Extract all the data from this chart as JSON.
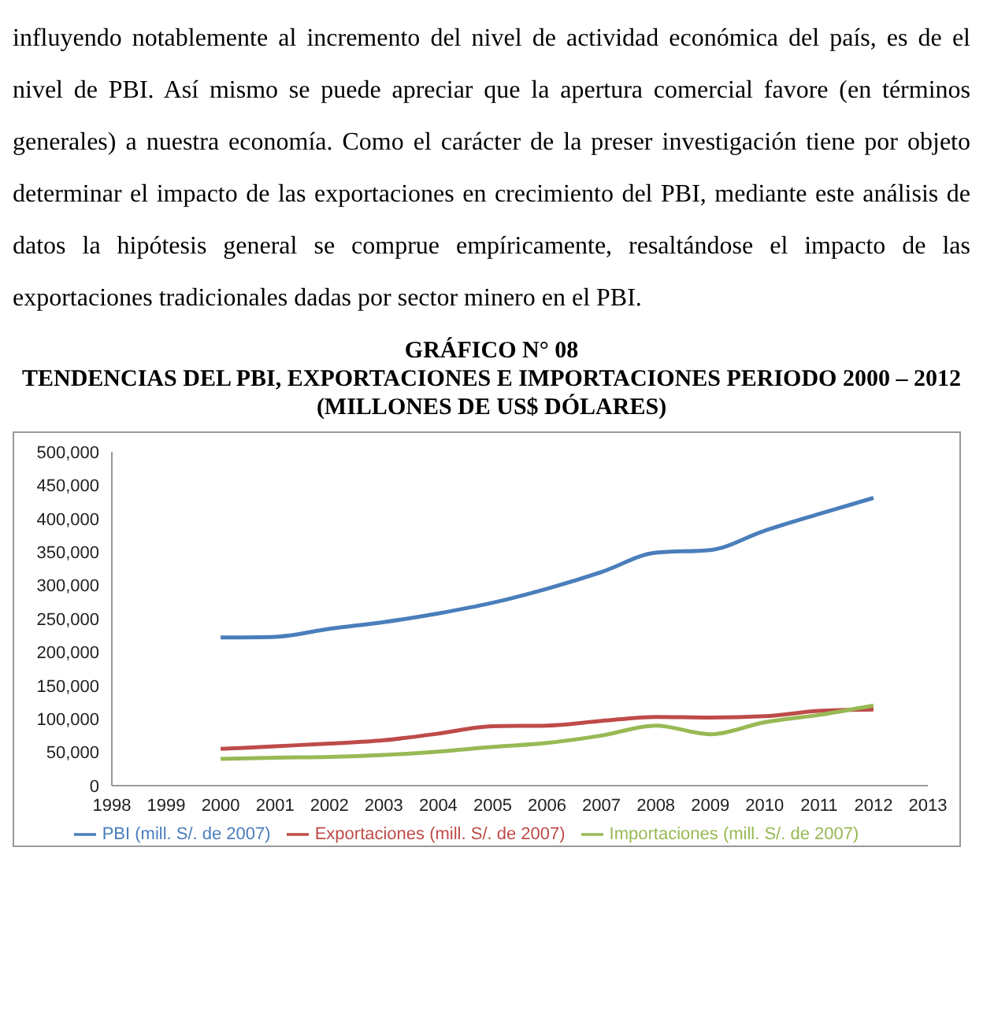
{
  "chart_data": {
    "type": "line",
    "title": "GRÁFICO N° 08",
    "subtitle": "TENDENCIAS DEL PBI, EXPORTACIONES E IMPORTACIONES PERIODO 2000 – 2012  (MILLONES DE US$ DÓLARES)",
    "annotations": [
      "influyendo notablemente al incremento del nivel de actividad económica del país, es de el nivel de PBI. Así mismo se puede apreciar que la apertura comercial favore (en términos generales) a nuestra economía. Como el carácter de la preser investigación tiene por objeto determinar el impacto de las exportaciones en crecimiento del PBI, mediante este análisis de datos la hipótesis general se comprue empíricamente, resaltándose el impacto de las exportaciones tradicionales dadas por sector minero en el PBI."
    ],
    "x": [
      2000,
      2001,
      2002,
      2003,
      2004,
      2005,
      2006,
      2007,
      2008,
      2009,
      2010,
      2011,
      2012
    ],
    "series": [
      {
        "name": "PBI (mill. S/. de 2007)",
        "color": "#4a7ebb",
        "values": [
          222000,
          223000,
          235000,
          245000,
          258000,
          274000,
          295000,
          320000,
          349000,
          353000,
          382000,
          407000,
          431000
        ]
      },
      {
        "name": "Exportaciones (mill. S/. de 2007)",
        "color": "#be4b48",
        "values": [
          55000,
          59000,
          63000,
          68000,
          78000,
          89000,
          90000,
          97000,
          103000,
          102000,
          104000,
          112000,
          114000
        ]
      },
      {
        "name": "Importaciones (mill. S/. de 2007)",
        "color": "#98b954",
        "values": [
          40000,
          42000,
          43000,
          46000,
          51000,
          58000,
          64000,
          75000,
          90000,
          77000,
          95000,
          106000,
          120000
        ]
      }
    ],
    "xlim": [
      1998,
      2013
    ],
    "xticks": [
      1998,
      1999,
      2000,
      2001,
      2002,
      2003,
      2004,
      2005,
      2006,
      2007,
      2008,
      2009,
      2010,
      2011,
      2012,
      2013
    ],
    "ylim": [
      0,
      500000
    ],
    "yticks": [
      0,
      {
        "value": 50000,
        "label": "50,000"
      },
      {
        "value": 100000,
        "label": "100,000"
      },
      {
        "value": 150000,
        "label": "150,000"
      },
      {
        "value": 200000,
        "label": "200,000"
      },
      {
        "value": 250000,
        "label": "250,000"
      },
      {
        "value": 300000,
        "label": "300,000"
      },
      {
        "value": 350000,
        "label": "350,000"
      },
      {
        "value": 400000,
        "label": "400,000"
      },
      {
        "value": 450000,
        "label": "450,000"
      },
      {
        "value": 500000,
        "label": "500,000"
      }
    ],
    "grid": false,
    "legend": "bottom",
    "marker": "none",
    "line_style": "solid"
  }
}
